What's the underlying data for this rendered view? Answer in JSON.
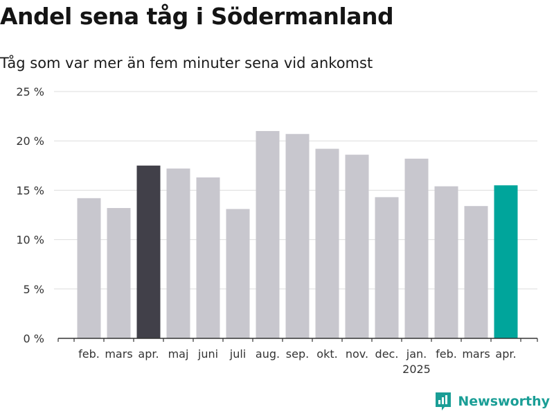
{
  "title": "Andel sena tåg i Södermanland",
  "subtitle": "Tåg som var mer än fem minuter sena vid ankomst",
  "brand": {
    "name": "Newsworthy",
    "icon": "newsworthy-logo-icon"
  },
  "colors": {
    "default_bar": "#c8c7ce",
    "highlight_bar": "#414049",
    "current_bar": "#00a59b",
    "grid": "#dddddd",
    "axis": "#333333",
    "text": "#333333",
    "brand": "#1a9e96"
  },
  "chart_data": {
    "type": "bar",
    "title": "Andel sena tåg i Södermanland",
    "subtitle": "Tåg som var mer än fem minuter sena vid ankomst",
    "categories": [
      "feb.",
      "mars",
      "apr.",
      "maj",
      "juni",
      "juli",
      "aug.",
      "sep.",
      "okt.",
      "nov.",
      "dec.",
      "jan.",
      "feb.",
      "mars",
      "apr."
    ],
    "year_labels": [
      {
        "category_index": 11,
        "label": "2025"
      }
    ],
    "values": [
      14.2,
      13.2,
      17.5,
      17.2,
      16.3,
      13.1,
      21.0,
      20.7,
      19.2,
      18.6,
      14.3,
      18.2,
      15.4,
      13.4,
      15.5
    ],
    "highlight": [
      {
        "index": 2,
        "color_key": "highlight_bar"
      },
      {
        "index": 14,
        "color_key": "current_bar"
      }
    ],
    "y_ticks": [
      0,
      5,
      10,
      15,
      20,
      25
    ],
    "y_tick_labels": [
      "0 %",
      "5 %",
      "10 %",
      "15 %",
      "20 %",
      "25 %"
    ],
    "ylim": [
      0,
      25
    ],
    "grid": true,
    "xlabel": "",
    "ylabel": ""
  }
}
